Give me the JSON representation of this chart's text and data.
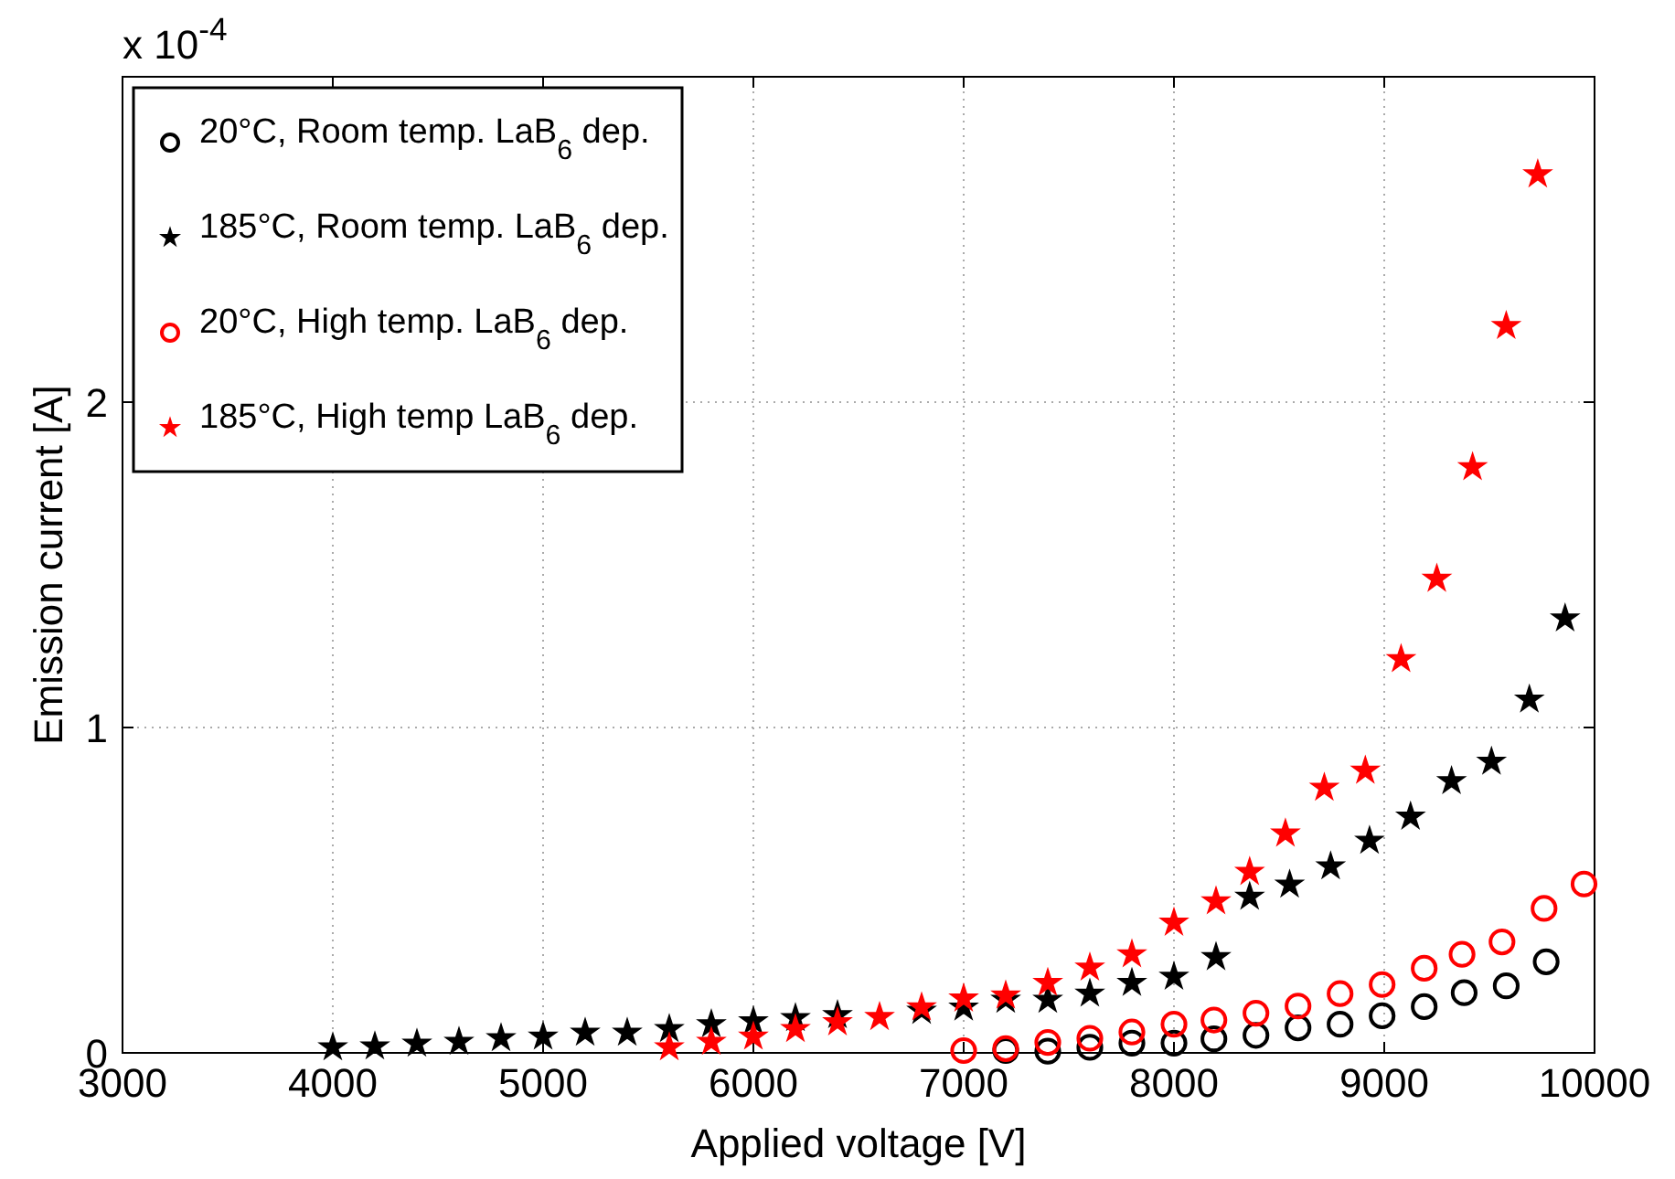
{
  "chart_data": {
    "type": "scatter",
    "xlabel": "Applied voltage [V]",
    "ylabel": "Emission current [A]",
    "annotations": [
      "x 10$^{-4}$"
    ],
    "xlim": [
      3000,
      10000
    ],
    "ylim": [
      0,
      3
    ],
    "xticks": [
      3000,
      4000,
      5000,
      6000,
      7000,
      8000,
      9000,
      10000
    ],
    "yticks": [
      0,
      1,
      2
    ],
    "grid": true,
    "legend": "top left",
    "series": [
      {
        "name": "20°C, Room temp. LaB$_{6}$ dep.",
        "color": "#000000",
        "marker": "circle",
        "x": [
          7200,
          7400,
          7600,
          7800,
          8000,
          8190,
          8390,
          8590,
          8790,
          8990,
          9190,
          9380,
          9580,
          9770
        ],
        "values": [
          0.007,
          0.005,
          0.017,
          0.03,
          0.03,
          0.043,
          0.054,
          0.077,
          0.088,
          0.114,
          0.142,
          0.185,
          0.206,
          0.28
        ]
      },
      {
        "name": "185°C, Room temp. LaB$_{6}$ dep.",
        "color": "#000000",
        "marker": "star",
        "x": [
          4000,
          4200,
          4400,
          4600,
          4800,
          5000,
          5200,
          5400,
          5600,
          5800,
          6000,
          6200,
          6400,
          6800,
          7000,
          7200,
          7400,
          7600,
          7800,
          8000,
          8200,
          8360,
          8550,
          8745,
          8930,
          9125,
          9320,
          9510,
          9690,
          9860
        ],
        "values": [
          0.017,
          0.02,
          0.028,
          0.034,
          0.045,
          0.05,
          0.062,
          0.062,
          0.073,
          0.088,
          0.097,
          0.107,
          0.116,
          0.129,
          0.139,
          0.163,
          0.163,
          0.182,
          0.215,
          0.234,
          0.294,
          0.48,
          0.517,
          0.573,
          0.652,
          0.726,
          0.835,
          0.895,
          1.086,
          1.335
        ]
      },
      {
        "name": "20°C, High temp. LaB$_{6}$ dep.",
        "color": "#ff0000",
        "marker": "circle",
        "x": [
          7000,
          7200,
          7400,
          7600,
          7800,
          8000,
          8190,
          8390,
          8590,
          8790,
          8990,
          9190,
          9370,
          9560,
          9760,
          9950
        ],
        "values": [
          0.007,
          0.013,
          0.032,
          0.045,
          0.064,
          0.088,
          0.101,
          0.122,
          0.144,
          0.182,
          0.21,
          0.26,
          0.303,
          0.341,
          0.444,
          0.519
        ]
      },
      {
        "name": "185°C, High temp LaB$_{6}$ dep.",
        "color": "#ff0000",
        "marker": "star",
        "x": [
          5600,
          5800,
          6000,
          6200,
          6400,
          6600,
          6800,
          7000,
          7200,
          7400,
          7600,
          7800,
          8000,
          8200,
          8360,
          8530,
          8715,
          8910,
          9080,
          9250,
          9420,
          9580,
          9730
        ],
        "values": [
          0.017,
          0.034,
          0.05,
          0.073,
          0.094,
          0.11,
          0.14,
          0.167,
          0.176,
          0.215,
          0.262,
          0.303,
          0.4,
          0.466,
          0.556,
          0.674,
          0.815,
          0.867,
          1.21,
          1.457,
          1.8,
          2.234,
          2.7
        ]
      }
    ]
  }
}
